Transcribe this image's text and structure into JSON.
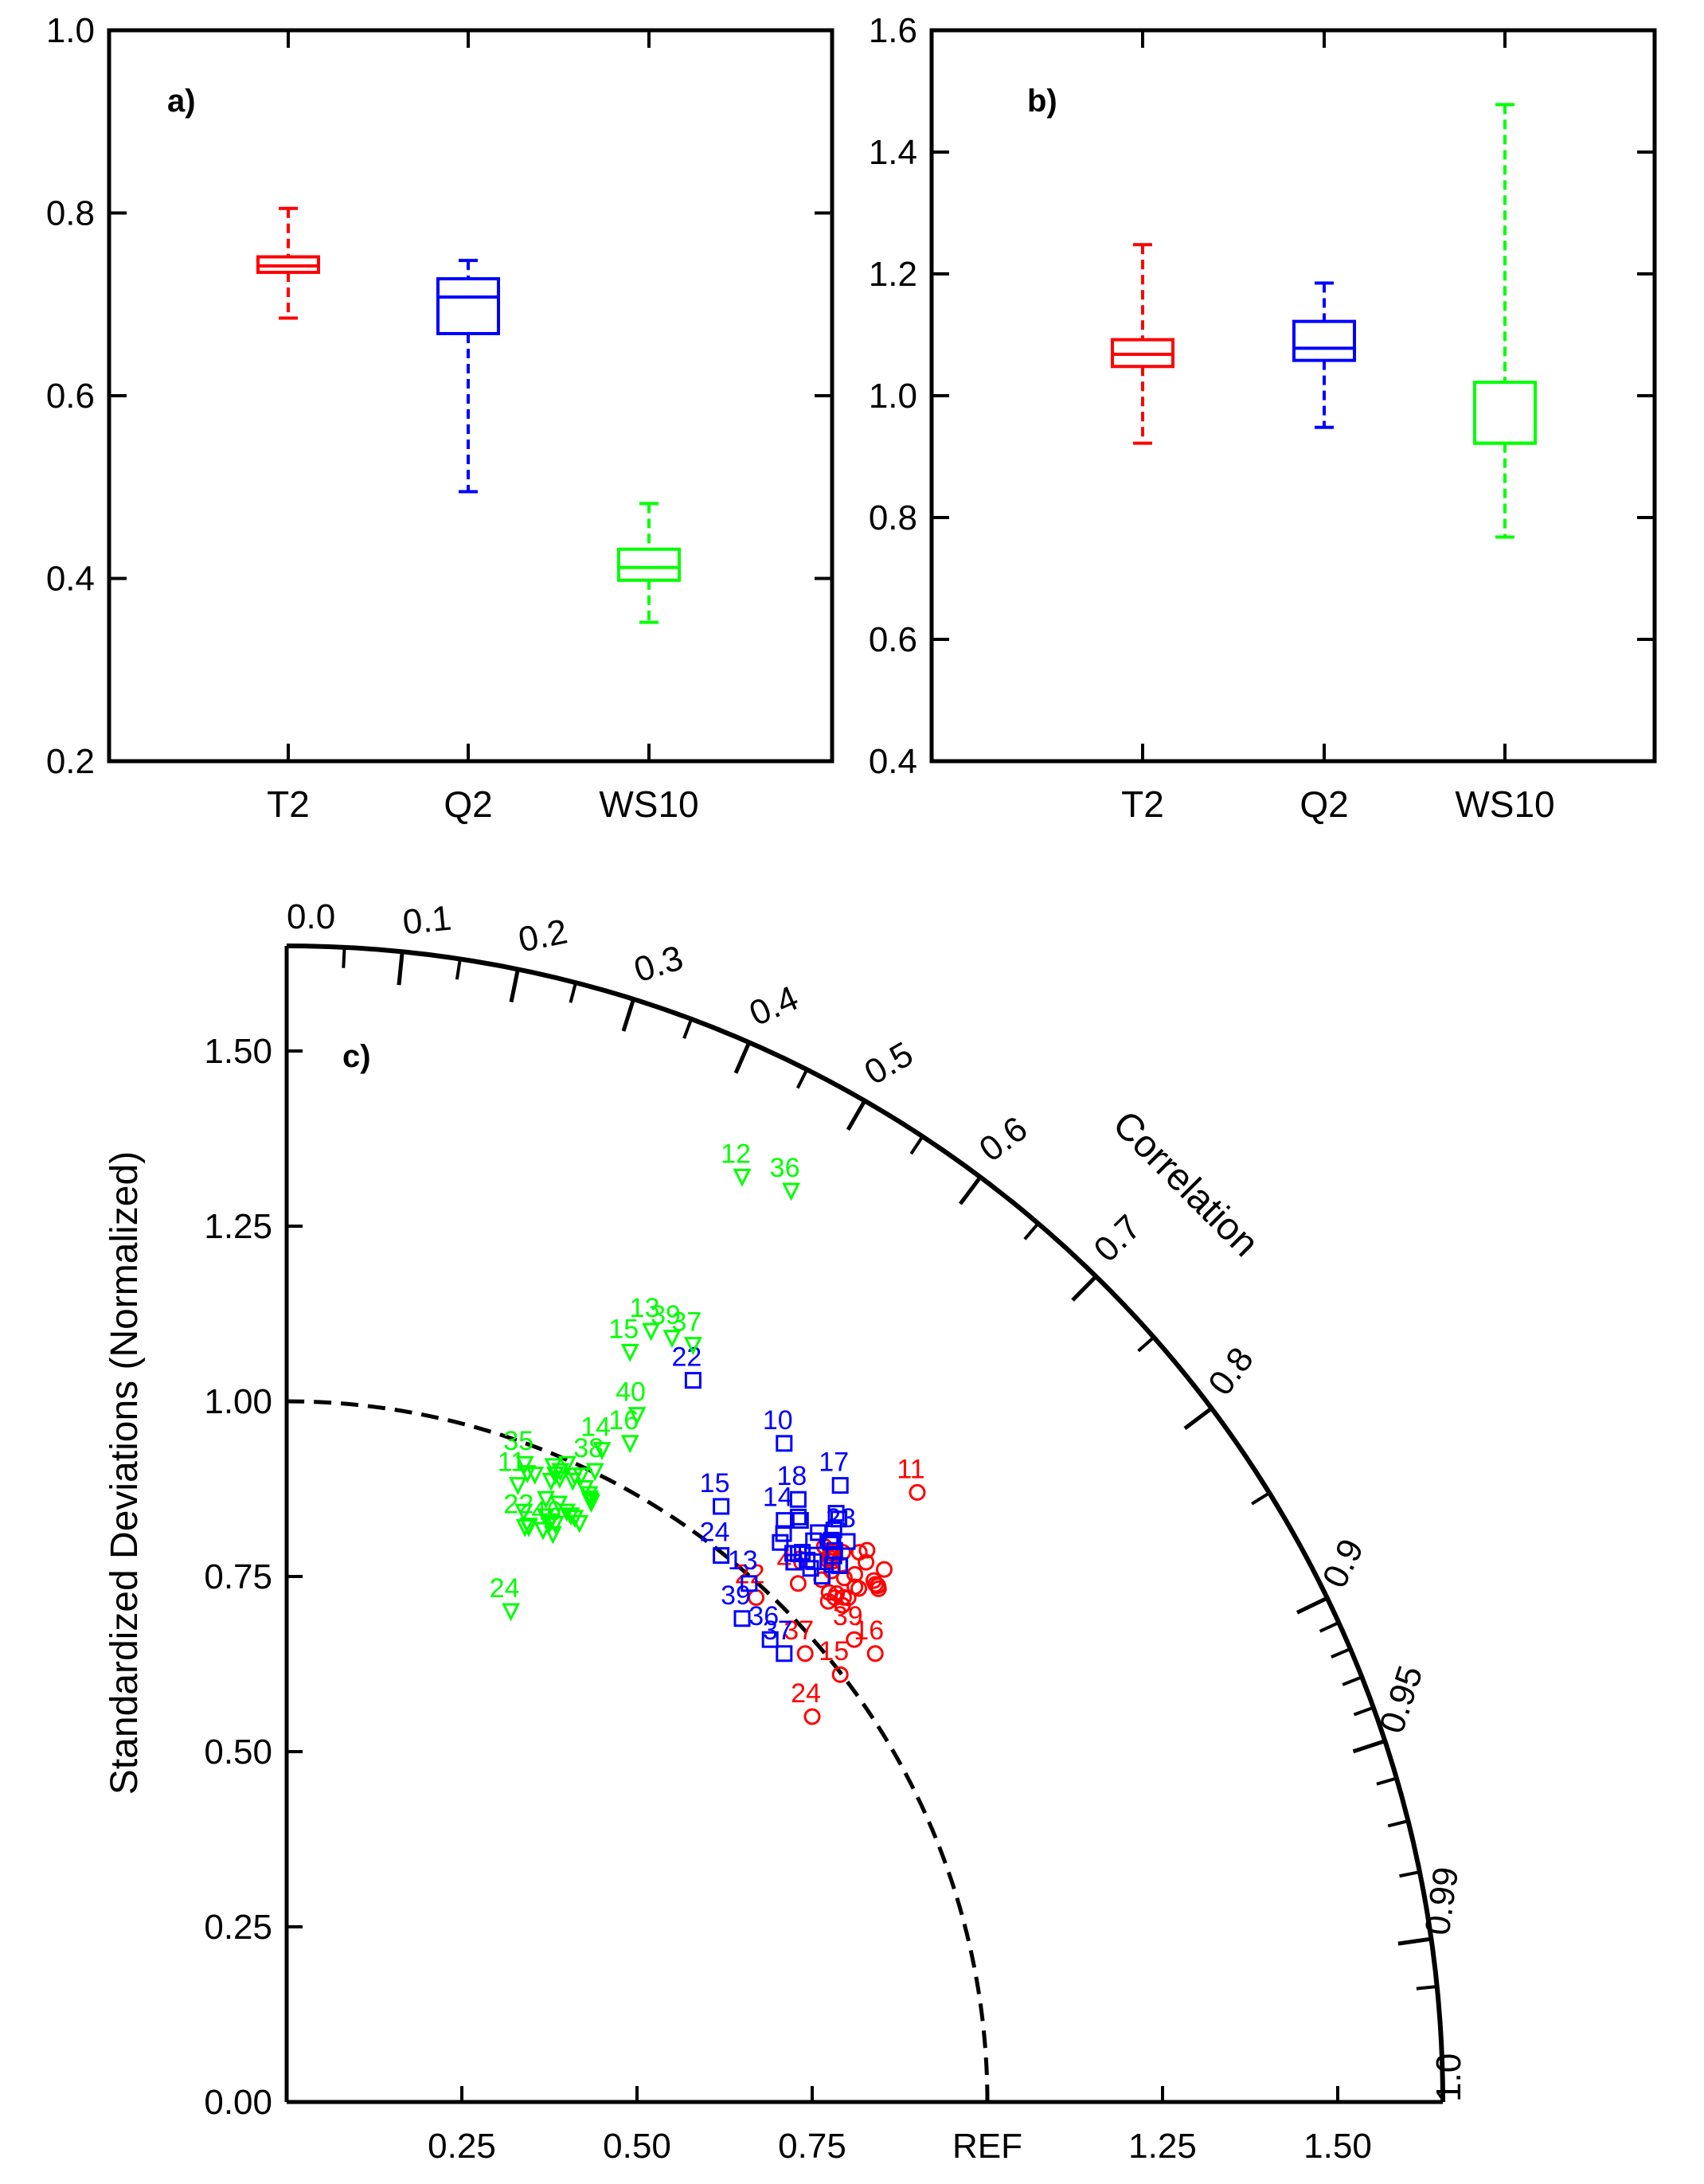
{
  "chart_data": [
    {
      "panel": "a)",
      "type": "box",
      "ylim": [
        0.2,
        1.0
      ],
      "yticks": [
        "0.2",
        "0.4",
        "0.6",
        "0.8",
        "1.0"
      ],
      "yticks_values": [
        0.2,
        0.4,
        0.6,
        0.8,
        1.0
      ],
      "categories": [
        "T2",
        "Q2",
        "WS10"
      ],
      "boxes": [
        {
          "name": "T2",
          "color": "#ff0000",
          "min": 0.685,
          "q1": 0.735,
          "median": 0.742,
          "q3": 0.752,
          "max": 0.805
        },
        {
          "name": "Q2",
          "color": "#0000ff",
          "min": 0.495,
          "q1": 0.668,
          "median": 0.708,
          "q3": 0.728,
          "max": 0.748
        },
        {
          "name": "WS10",
          "color": "#00ff00",
          "min": 0.352,
          "q1": 0.398,
          "median": 0.412,
          "q3": 0.432,
          "max": 0.482
        }
      ]
    },
    {
      "panel": "b)",
      "type": "box",
      "ylim": [
        0.4,
        1.6
      ],
      "yticks": [
        "0.4",
        "0.6",
        "0.8",
        "1.0",
        "1.2",
        "1.4",
        "1.6"
      ],
      "yticks_values": [
        0.4,
        0.6,
        0.8,
        1.0,
        1.2,
        1.4,
        1.6
      ],
      "categories": [
        "T2",
        "Q2",
        "WS10"
      ],
      "boxes": [
        {
          "name": "T2",
          "color": "#ff0000",
          "min": 0.922,
          "q1": 1.048,
          "median": 1.068,
          "q3": 1.092,
          "max": 1.248
        },
        {
          "name": "Q2",
          "color": "#0000ff",
          "min": 0.948,
          "q1": 1.058,
          "median": 1.078,
          "q3": 1.122,
          "max": 1.185
        },
        {
          "name": "WS10",
          "color": "#00ff00",
          "min": 0.768,
          "q1": 0.922,
          "median": 0.922,
          "q3": 1.022,
          "max": 1.478
        }
      ]
    },
    {
      "panel": "c)",
      "type": "scatter",
      "subtype": "taylor-diagram",
      "ylabel": "Standardized Deviations (Normalized)",
      "arc_label": "Correlation",
      "xlim": [
        0,
        1.65
      ],
      "ylim": [
        0,
        1.65
      ],
      "yticks": [
        "0.00",
        "0.25",
        "0.50",
        "0.75",
        "1.00",
        "1.25",
        "1.50"
      ],
      "yticks_values": [
        0,
        0.25,
        0.5,
        0.75,
        1.0,
        1.25,
        1.5
      ],
      "xticks": [
        "0.25",
        "0.50",
        "0.75",
        "REF",
        "1.25",
        "1.50"
      ],
      "xticks_values": [
        0.25,
        0.5,
        0.75,
        1.0,
        1.25,
        1.5
      ],
      "correlation_labels": [
        "0.0",
        "0.1",
        "0.2",
        "0.3",
        "0.4",
        "0.5",
        "0.6",
        "0.7",
        "0.8",
        "0.9",
        "0.95",
        "0.99",
        "1.0"
      ],
      "correlation_values": [
        0.0,
        0.1,
        0.2,
        0.3,
        0.4,
        0.5,
        0.6,
        0.7,
        0.8,
        0.9,
        0.95,
        0.99,
        1.0
      ],
      "series": [
        {
          "name": "T2",
          "color": "#ff0000",
          "marker": "circle",
          "labeled": [
            {
              "label": "11",
              "x": 0.9,
              "y": 0.87
            },
            {
              "label": "22",
              "x": 0.67,
              "y": 0.72
            },
            {
              "label": "46",
              "x": 0.73,
              "y": 0.74
            },
            {
              "label": "39",
              "x": 0.81,
              "y": 0.66
            },
            {
              "label": "16",
              "x": 0.84,
              "y": 0.64
            },
            {
              "label": "15",
              "x": 0.79,
              "y": 0.61
            },
            {
              "label": "37",
              "x": 0.74,
              "y": 0.64
            },
            {
              "label": "24",
              "x": 0.75,
              "y": 0.55
            }
          ],
          "cluster": {
            "x": 0.8,
            "y": 0.76,
            "count": 30
          }
        },
        {
          "name": "Q2",
          "color": "#0000ff",
          "marker": "square",
          "labeled": [
            {
              "label": "22",
              "x": 0.58,
              "y": 1.03
            },
            {
              "label": "10",
              "x": 0.71,
              "y": 0.94
            },
            {
              "label": "17",
              "x": 0.79,
              "y": 0.88
            },
            {
              "label": "18",
              "x": 0.73,
              "y": 0.86
            },
            {
              "label": "15",
              "x": 0.62,
              "y": 0.85
            },
            {
              "label": "14",
              "x": 0.71,
              "y": 0.83
            },
            {
              "label": "23",
              "x": 0.8,
              "y": 0.8
            },
            {
              "label": "24",
              "x": 0.62,
              "y": 0.78
            },
            {
              "label": "13",
              "x": 0.66,
              "y": 0.74
            },
            {
              "label": "39",
              "x": 0.65,
              "y": 0.69
            },
            {
              "label": "36",
              "x": 0.69,
              "y": 0.66
            },
            {
              "label": "37",
              "x": 0.71,
              "y": 0.64
            }
          ],
          "cluster": {
            "x": 0.75,
            "y": 0.8,
            "count": 25
          }
        },
        {
          "name": "WS10",
          "color": "#00ff00",
          "marker": "triangle",
          "labeled": [
            {
              "label": "12",
              "x": 0.65,
              "y": 1.32
            },
            {
              "label": "36",
              "x": 0.72,
              "y": 1.3
            },
            {
              "label": "13",
              "x": 0.52,
              "y": 1.1
            },
            {
              "label": "39",
              "x": 0.55,
              "y": 1.09
            },
            {
              "label": "37",
              "x": 0.58,
              "y": 1.08
            },
            {
              "label": "15",
              "x": 0.49,
              "y": 1.07
            },
            {
              "label": "40",
              "x": 0.5,
              "y": 0.98
            },
            {
              "label": "14",
              "x": 0.45,
              "y": 0.93
            },
            {
              "label": "16",
              "x": 0.49,
              "y": 0.94
            },
            {
              "label": "38",
              "x": 0.44,
              "y": 0.9
            },
            {
              "label": "35",
              "x": 0.34,
              "y": 0.91
            },
            {
              "label": "11",
              "x": 0.33,
              "y": 0.88
            },
            {
              "label": "22",
              "x": 0.34,
              "y": 0.82
            },
            {
              "label": "46",
              "x": 0.38,
              "y": 0.81
            },
            {
              "label": "24",
              "x": 0.32,
              "y": 0.7
            }
          ],
          "cluster": {
            "x": 0.38,
            "y": 0.86,
            "count": 30
          }
        }
      ]
    }
  ]
}
